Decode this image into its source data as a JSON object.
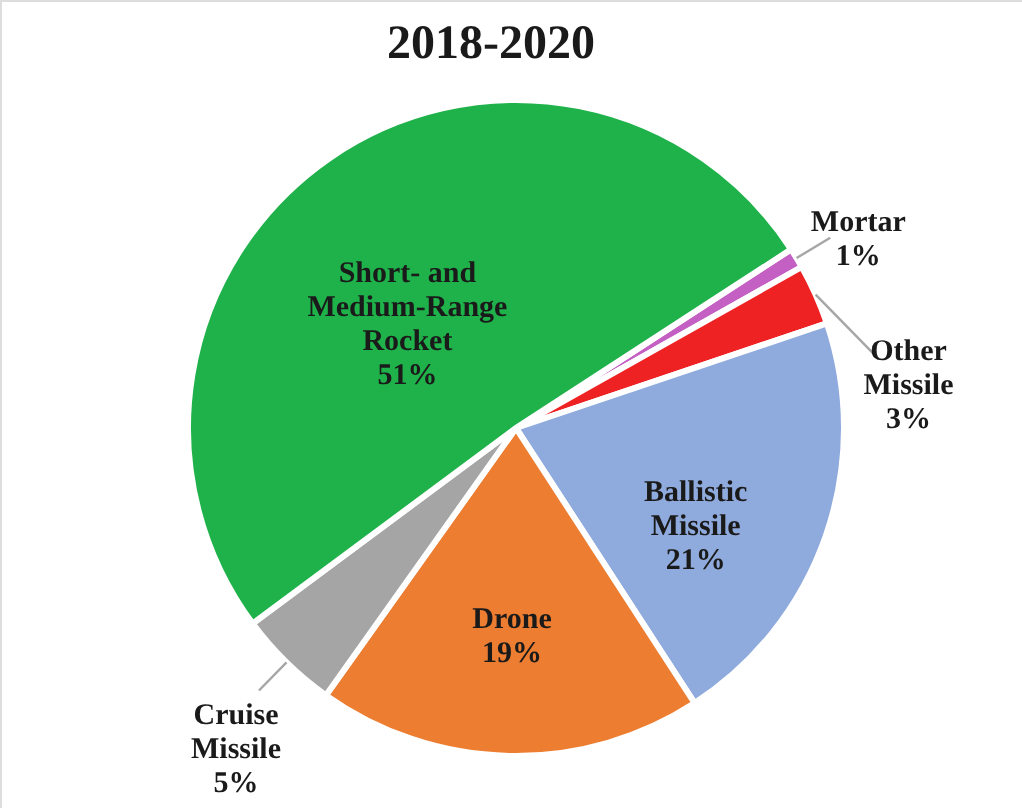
{
  "chart_data": {
    "type": "pie",
    "title": "2018-2020",
    "categories": [
      "Mortar",
      "Other Missile",
      "Ballistic Missile",
      "Drone",
      "Cruise Missile",
      "Short- and Medium-Range Rocket"
    ],
    "values": [
      1,
      3,
      21,
      19,
      5,
      51
    ],
    "value_labels": [
      "1%",
      "3%",
      "21%",
      "19%",
      "5%",
      "51%"
    ],
    "colors": [
      "#c45fc4",
      "#ee2222",
      "#8faadc",
      "#ed7d31",
      "#a5a5a5",
      "#1fb24a"
    ]
  }
}
